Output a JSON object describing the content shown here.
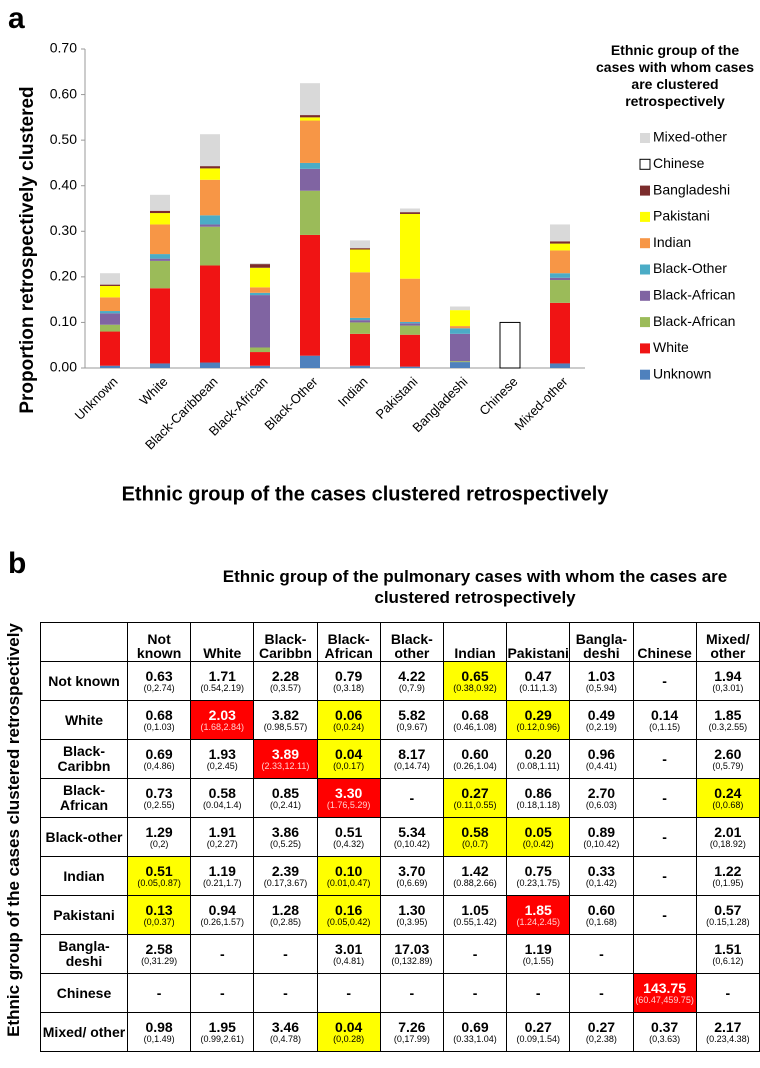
{
  "panel_labels": [
    "a",
    "b"
  ],
  "chart_data": {
    "type": "stacked_bar",
    "ylabel": "Proportion retrospectively clustered",
    "xlabel": "Ethnic group of the cases clustered retrospectively",
    "legend_title": "Ethnic group of the cases with whom cases are clustered retrospectively",
    "legend": "right",
    "grid": false,
    "categories": [
      "Unknown",
      "White",
      "Black-Caribbean",
      "Black-African",
      "Black-Other",
      "Indian",
      "Pakistani",
      "Bangladeshi",
      "Chinese",
      "Mixed-other"
    ],
    "ylim": [
      0,
      0.7
    ],
    "yticks": [
      {
        "value": 0,
        "label": "0.00"
      },
      {
        "value": 0.1,
        "label": "0.10"
      },
      {
        "value": 0.2,
        "label": "0.20"
      },
      {
        "value": 0.3,
        "label": "0.30"
      },
      {
        "value": 0.4,
        "label": "0.40"
      },
      {
        "value": 0.5,
        "label": "0.50"
      },
      {
        "value": 0.6,
        "label": "0.60"
      },
      {
        "value": 0.7,
        "label": "0.70"
      }
    ],
    "series": [
      {
        "name": "Unknown",
        "color": "#4f81bd",
        "values": [
          0.005,
          0.01,
          0.012,
          0.005,
          0.027,
          0.005,
          0.003,
          0.013,
          0,
          0.01
        ]
      },
      {
        "name": "White",
        "color": "#f01414",
        "values": [
          0.075,
          0.165,
          0.213,
          0.03,
          0.265,
          0.07,
          0.07,
          0,
          0,
          0.133
        ]
      },
      {
        "name": "Black-African",
        "color": "#9bbb59",
        "values": [
          0.015,
          0.06,
          0.085,
          0.01,
          0.097,
          0.025,
          0.02,
          0.002,
          0,
          0.05
        ]
      },
      {
        "name": "Black-African",
        "color": "#8064a2",
        "values": [
          0.025,
          0.005,
          0.005,
          0.115,
          0.048,
          0.005,
          0.005,
          0.06,
          0,
          0.005
        ]
      },
      {
        "name": "Black-Other",
        "color": "#4bacc6",
        "values": [
          0.005,
          0.01,
          0.02,
          0.005,
          0.013,
          0.005,
          0.003,
          0.012,
          0,
          0.01
        ]
      },
      {
        "name": "Indian",
        "color": "#f79646",
        "values": [
          0.03,
          0.065,
          0.078,
          0.012,
          0.093,
          0.1,
          0.095,
          0.005,
          0,
          0.05
        ]
      },
      {
        "name": "Pakistani",
        "color": "#ffff00",
        "values": [
          0.025,
          0.025,
          0.025,
          0.043,
          0.007,
          0.05,
          0.142,
          0.035,
          0,
          0.015
        ]
      },
      {
        "name": "Bangladeshi",
        "color": "#7b2c2c",
        "values": [
          0.003,
          0.005,
          0.005,
          0.008,
          0.005,
          0.003,
          0.004,
          0,
          0,
          0.005
        ]
      },
      {
        "name": "Chinese",
        "color": "#ffffff",
        "edge": "#000000",
        "values": [
          0,
          0,
          0,
          0,
          0,
          0,
          0,
          0,
          0.1,
          0
        ]
      },
      {
        "name": "Mixed-other",
        "color": "#d9d9d9",
        "values": [
          0.025,
          0.035,
          0.07,
          0.002,
          0.07,
          0.017,
          0.008,
          0.008,
          0,
          0.037
        ]
      }
    ]
  },
  "table": {
    "title": "Ethnic group of the pulmonary cases with whom the cases are clustered retrospectively",
    "row_title": "Ethnic group of the cases clustered retrospectively",
    "columns": [
      "Not known",
      "White",
      "Black-Caribbn",
      "Black-African",
      "Black-other",
      "Indian",
      "Pakistani",
      "Bangla-deshi",
      "Chinese",
      "Mixed/ other"
    ],
    "rows": [
      {
        "label": "Not known",
        "cells": [
          {
            "v": "0.63",
            "ci": "(0,2.74)"
          },
          {
            "v": "1.71",
            "ci": "(0.54,2.19)"
          },
          {
            "v": "2.28",
            "ci": "(0,3.57)"
          },
          {
            "v": "0.79",
            "ci": "(0,3.18)"
          },
          {
            "v": "4.22",
            "ci": "(0,7.9)"
          },
          {
            "v": "0.65",
            "ci": "(0.38,0.92)",
            "hl": "yellow"
          },
          {
            "v": "0.47",
            "ci": "(0.11,1.3)"
          },
          {
            "v": "1.03",
            "ci": "(0,5.94)"
          },
          {
            "v": "-"
          },
          {
            "v": "1.94",
            "ci": "(0,3.01)"
          }
        ]
      },
      {
        "label": "White",
        "cells": [
          {
            "v": "0.68",
            "ci": "(0,1.03)"
          },
          {
            "v": "2.03",
            "ci": "(1.68,2.84)",
            "hl": "red"
          },
          {
            "v": "3.82",
            "ci": "(0.98,5.57)"
          },
          {
            "v": "0.06",
            "ci": "(0,0.24)",
            "hl": "yellow"
          },
          {
            "v": "5.82",
            "ci": "(0,9.67)"
          },
          {
            "v": "0.68",
            "ci": "(0.46,1.08)"
          },
          {
            "v": "0.29",
            "ci": "(0.12,0.96)",
            "hl": "yellow"
          },
          {
            "v": "0.49",
            "ci": "(0,2.19)"
          },
          {
            "v": "0.14",
            "ci": "(0,1.15)"
          },
          {
            "v": "1.85",
            "ci": "(0.3,2.55)"
          }
        ]
      },
      {
        "label": "Black-Caribbn",
        "cells": [
          {
            "v": "0.69",
            "ci": "(0,4.86)"
          },
          {
            "v": "1.93",
            "ci": "(0,2.45)"
          },
          {
            "v": "3.89",
            "ci": "(2.33,12.11)",
            "hl": "red"
          },
          {
            "v": "0.04",
            "ci": "(0,0.17)",
            "hl": "yellow"
          },
          {
            "v": "8.17",
            "ci": "(0,14.74)"
          },
          {
            "v": "0.60",
            "ci": "(0.26,1.04)"
          },
          {
            "v": "0.20",
            "ci": "(0.08,1.11)"
          },
          {
            "v": "0.96",
            "ci": "(0,4.41)"
          },
          {
            "v": "-"
          },
          {
            "v": "2.60",
            "ci": "(0,5.79)"
          }
        ]
      },
      {
        "label": "Black-African",
        "cells": [
          {
            "v": "0.73",
            "ci": "(0,2.55)"
          },
          {
            "v": "0.58",
            "ci": "(0.04,1.4)"
          },
          {
            "v": "0.85",
            "ci": "(0,2.41)"
          },
          {
            "v": "3.30",
            "ci": "(1.76,5.29)",
            "hl": "red"
          },
          {
            "v": "-"
          },
          {
            "v": "0.27",
            "ci": "(0.11,0.55)",
            "hl": "yellow"
          },
          {
            "v": "0.86",
            "ci": "(0.18,1.18)"
          },
          {
            "v": "2.70",
            "ci": "(0,6.03)"
          },
          {
            "v": "-"
          },
          {
            "v": "0.24",
            "ci": "(0,0.68)",
            "hl": "yellow"
          }
        ]
      },
      {
        "label": "Black-other",
        "cells": [
          {
            "v": "1.29",
            "ci": "(0,2)"
          },
          {
            "v": "1.91",
            "ci": "(0,2.27)"
          },
          {
            "v": "3.86",
            "ci": "(0,5.25)"
          },
          {
            "v": "0.51",
            "ci": "(0,4.32)"
          },
          {
            "v": "5.34",
            "ci": "(0,10.42)"
          },
          {
            "v": "0.58",
            "ci": "(0,0.7)",
            "hl": "yellow"
          },
          {
            "v": "0.05",
            "ci": "(0,0.42)",
            "hl": "yellow"
          },
          {
            "v": "0.89",
            "ci": "(0,10.42)"
          },
          {
            "v": "-"
          },
          {
            "v": "2.01",
            "ci": "(0,18.92)"
          }
        ]
      },
      {
        "label": "Indian",
        "cells": [
          {
            "v": "0.51",
            "ci": "(0.05,0.87)",
            "hl": "yellow"
          },
          {
            "v": "1.19",
            "ci": "(0.21,1.7)"
          },
          {
            "v": "2.39",
            "ci": "(0.17,3.67)"
          },
          {
            "v": "0.10",
            "ci": "(0.01,0.47)",
            "hl": "yellow"
          },
          {
            "v": "3.70",
            "ci": "(0,6.69)"
          },
          {
            "v": "1.42",
            "ci": "(0.88,2.66)"
          },
          {
            "v": "0.75",
            "ci": "(0.23,1.75)"
          },
          {
            "v": "0.33",
            "ci": "(0,1.42)"
          },
          {
            "v": "-"
          },
          {
            "v": "1.22",
            "ci": "(0,1.95)"
          }
        ]
      },
      {
        "label": "Pakistani",
        "cells": [
          {
            "v": "0.13",
            "ci": "(0,0.37)",
            "hl": "yellow"
          },
          {
            "v": "0.94",
            "ci": "(0.26,1.57)"
          },
          {
            "v": "1.28",
            "ci": "(0,2.85)"
          },
          {
            "v": "0.16",
            "ci": "(0.05,0.42)",
            "hl": "yellow"
          },
          {
            "v": "1.30",
            "ci": "(0,3.95)"
          },
          {
            "v": "1.05",
            "ci": "(0.55,1.42)"
          },
          {
            "v": "1.85",
            "ci": "(1.24,2.45)",
            "hl": "red"
          },
          {
            "v": "0.60",
            "ci": "(0,1.68)"
          },
          {
            "v": "-"
          },
          {
            "v": "0.57",
            "ci": "(0.15,1.28)"
          }
        ]
      },
      {
        "label": "Bangla-deshi",
        "cells": [
          {
            "v": "2.58",
            "ci": "(0,31.29)"
          },
          {
            "v": "-"
          },
          {
            "v": "-"
          },
          {
            "v": "3.01",
            "ci": "(0,4.81)"
          },
          {
            "v": "17.03",
            "ci": "(0,132.89)"
          },
          {
            "v": "-"
          },
          {
            "v": "1.19",
            "ci": "(0,1.55)"
          },
          {
            "v": "-"
          },
          null,
          {
            "v": "1.51",
            "ci": "(0,6.12)"
          }
        ]
      },
      {
        "label": "Chinese",
        "cells": [
          {
            "v": "-"
          },
          {
            "v": "-"
          },
          {
            "v": "-"
          },
          {
            "v": "-"
          },
          {
            "v": "-"
          },
          {
            "v": "-"
          },
          {
            "v": "-"
          },
          {
            "v": "-"
          },
          {
            "v": "143.75",
            "ci": "(60.47,459.75)",
            "hl": "red"
          },
          {
            "v": "-"
          }
        ]
      },
      {
        "label": "Mixed/ other",
        "cells": [
          {
            "v": "0.98",
            "ci": "(0,1.49)"
          },
          {
            "v": "1.95",
            "ci": "(0.99,2.61)"
          },
          {
            "v": "3.46",
            "ci": "(0,4.78)"
          },
          {
            "v": "0.04",
            "ci": "(0,0.28)",
            "hl": "yellow"
          },
          {
            "v": "7.26",
            "ci": "(0,17.99)"
          },
          {
            "v": "0.69",
            "ci": "(0.33,1.04)"
          },
          {
            "v": "0.27",
            "ci": "(0.09,1.54)"
          },
          {
            "v": "0.27",
            "ci": "(0,2.38)"
          },
          {
            "v": "0.37",
            "ci": "(0,3.63)"
          },
          {
            "v": "2.17",
            "ci": "(0.23,4.38)"
          }
        ]
      }
    ]
  }
}
